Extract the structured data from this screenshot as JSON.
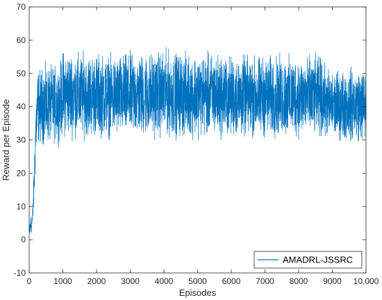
{
  "chart_data": {
    "type": "line",
    "title": "",
    "xlabel": "Episodes",
    "ylabel": "Reward per Episode",
    "xlim": [
      0,
      10000
    ],
    "ylim": [
      -10,
      70
    ],
    "x_ticks": [
      0,
      1000,
      2000,
      3000,
      4000,
      5000,
      6000,
      7000,
      8000,
      9000,
      10000
    ],
    "x_tick_labels": [
      "0",
      "1000",
      "2000",
      "3000",
      "4000",
      "5000",
      "6000",
      "7000",
      "8000",
      "9000",
      "10,000"
    ],
    "y_ticks": [
      -10,
      0,
      10,
      20,
      30,
      40,
      50,
      60,
      70
    ],
    "y_tick_labels": [
      "-10",
      "0",
      "10",
      "20",
      "30",
      "40",
      "50",
      "60",
      "70"
    ],
    "grid": false,
    "legend_position": "bottom-right",
    "series": [
      {
        "name": "AMADRL-JSSRC",
        "color": "#0072BD",
        "envelope": {
          "x": [
            0,
            50,
            100,
            150,
            200,
            250,
            300,
            500,
            900,
            1000,
            1500,
            2000,
            2500,
            3000,
            3500,
            4000,
            4500,
            5000,
            5500,
            6000,
            6500,
            7000,
            7500,
            8000,
            8500,
            8700,
            8800,
            9000,
            9500,
            10000
          ],
          "upper": [
            6,
            9,
            10,
            25,
            45,
            54,
            54,
            55,
            55,
            60,
            59,
            59,
            58,
            59,
            59,
            60,
            59,
            59,
            59,
            58,
            58,
            58,
            58,
            58,
            58,
            58,
            54,
            53,
            54,
            54
          ],
          "lower": [
            -1,
            0,
            2,
            10,
            22,
            26,
            26,
            26,
            27,
            28,
            28,
            28,
            28,
            28,
            28,
            28,
            28,
            28,
            28,
            28,
            28,
            28,
            28,
            28,
            28,
            28,
            28,
            28,
            27,
            27
          ]
        }
      }
    ]
  }
}
